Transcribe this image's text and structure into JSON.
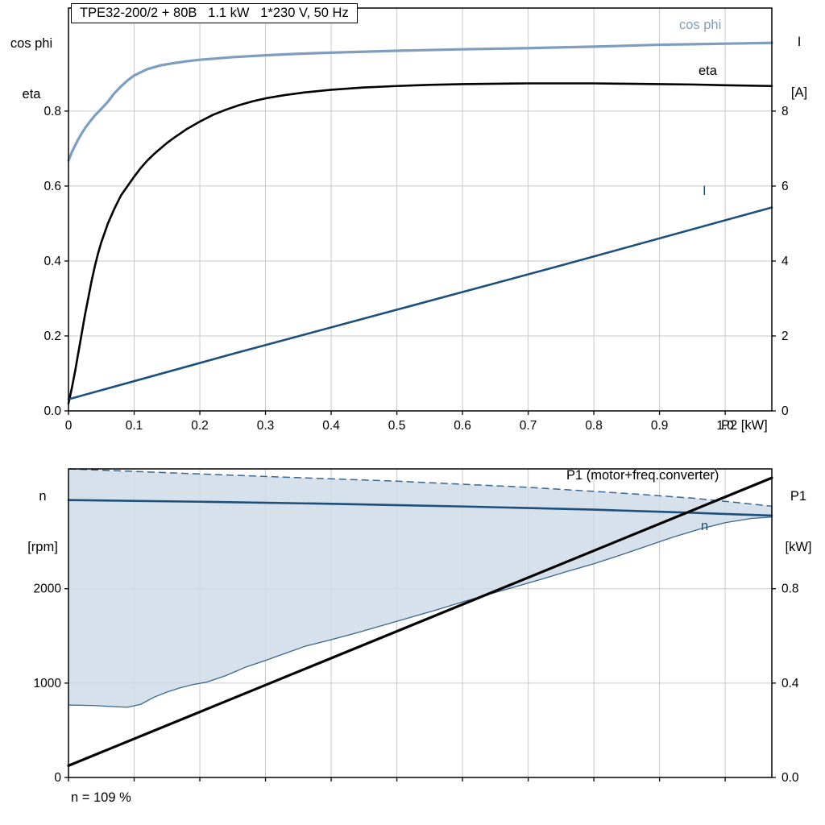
{
  "colors": {
    "cos_phi": "#7f9ebf",
    "current": "#1c4f7c",
    "eta": "#000000",
    "p1": "#000000",
    "n": "#1c4f7c",
    "envelope_fill": "#cdd9e6",
    "envelope_edge": "#39678f",
    "grid": "#c9c9c9",
    "frame": "#000000"
  },
  "chart_data": [
    {
      "type": "line",
      "title": "TPE32-200/2 + 80B   1.1 kW   1*230 V, 50 Hz",
      "x_axis": {
        "label": "P2 [kW]",
        "range": [
          0,
          1.071
        ],
        "ticks": [
          [
            0,
            "0"
          ],
          [
            0.1,
            "0.1"
          ],
          [
            0.2,
            "0.2"
          ],
          [
            0.3,
            "0.3"
          ],
          [
            0.4,
            "0.4"
          ],
          [
            0.5,
            "0.5"
          ],
          [
            0.6,
            "0.6"
          ],
          [
            0.7,
            "0.7"
          ],
          [
            0.8,
            "0.8"
          ],
          [
            0.9,
            "0.9"
          ],
          [
            1.0,
            "1.0"
          ]
        ]
      },
      "y_left": {
        "label_lines": [
          "cos phi",
          "eta"
        ],
        "range": [
          0,
          1.075
        ],
        "ticks": [
          [
            0,
            "0.0"
          ],
          [
            0.2,
            "0.2"
          ],
          [
            0.4,
            "0.4"
          ],
          [
            0.6,
            "0.6"
          ],
          [
            0.8,
            "0.8"
          ]
        ],
        "grid": [
          0.2,
          0.4,
          0.6,
          0.8
        ]
      },
      "y_right": {
        "label_lines": [
          "I",
          "[A]"
        ],
        "range": [
          0,
          10.75
        ],
        "ticks": [
          [
            0,
            "0"
          ],
          [
            2,
            "2"
          ],
          [
            4,
            "4"
          ],
          [
            6,
            "6"
          ],
          [
            8,
            "8"
          ]
        ]
      },
      "series": [
        {
          "name": "cos_phi",
          "label": "cos phi",
          "color": "#7f9ebf",
          "width": 3.2,
          "axis": "left",
          "points": [
            [
              0,
              0.668
            ],
            [
              0.005,
              0.69
            ],
            [
              0.01,
              0.708
            ],
            [
              0.015,
              0.725
            ],
            [
              0.02,
              0.74
            ],
            [
              0.025,
              0.754
            ],
            [
              0.03,
              0.766
            ],
            [
              0.04,
              0.788
            ],
            [
              0.05,
              0.806
            ],
            [
              0.06,
              0.825
            ],
            [
              0.07,
              0.848
            ],
            [
              0.08,
              0.866
            ],
            [
              0.09,
              0.882
            ],
            [
              0.1,
              0.895
            ],
            [
              0.12,
              0.912
            ],
            [
              0.14,
              0.922
            ],
            [
              0.16,
              0.928
            ],
            [
              0.18,
              0.933
            ],
            [
              0.2,
              0.937
            ],
            [
              0.25,
              0.944
            ],
            [
              0.3,
              0.949
            ],
            [
              0.35,
              0.953
            ],
            [
              0.4,
              0.956
            ],
            [
              0.5,
              0.961
            ],
            [
              0.6,
              0.965
            ],
            [
              0.7,
              0.968
            ],
            [
              0.8,
              0.972
            ],
            [
              0.9,
              0.977
            ],
            [
              1.0,
              0.98
            ],
            [
              1.071,
              0.982
            ]
          ]
        },
        {
          "name": "eta",
          "label": "eta",
          "color": "#000000",
          "width": 2.6,
          "axis": "left",
          "points": [
            [
              0,
              0.02
            ],
            [
              0.005,
              0.06
            ],
            [
              0.01,
              0.105
            ],
            [
              0.015,
              0.155
            ],
            [
              0.02,
              0.205
            ],
            [
              0.025,
              0.255
            ],
            [
              0.03,
              0.3
            ],
            [
              0.035,
              0.345
            ],
            [
              0.04,
              0.385
            ],
            [
              0.045,
              0.42
            ],
            [
              0.05,
              0.45
            ],
            [
              0.06,
              0.5
            ],
            [
              0.07,
              0.54
            ],
            [
              0.08,
              0.575
            ],
            [
              0.09,
              0.6
            ],
            [
              0.1,
              0.625
            ],
            [
              0.11,
              0.648
            ],
            [
              0.12,
              0.668
            ],
            [
              0.13,
              0.685
            ],
            [
              0.14,
              0.7
            ],
            [
              0.15,
              0.715
            ],
            [
              0.16,
              0.728
            ],
            [
              0.17,
              0.74
            ],
            [
              0.18,
              0.752
            ],
            [
              0.19,
              0.762
            ],
            [
              0.2,
              0.772
            ],
            [
              0.22,
              0.79
            ],
            [
              0.24,
              0.804
            ],
            [
              0.26,
              0.816
            ],
            [
              0.28,
              0.826
            ],
            [
              0.3,
              0.834
            ],
            [
              0.33,
              0.843
            ],
            [
              0.36,
              0.85
            ],
            [
              0.4,
              0.857
            ],
            [
              0.45,
              0.863
            ],
            [
              0.5,
              0.867
            ],
            [
              0.55,
              0.87
            ],
            [
              0.6,
              0.872
            ],
            [
              0.65,
              0.873
            ],
            [
              0.7,
              0.874
            ],
            [
              0.75,
              0.874
            ],
            [
              0.8,
              0.874
            ],
            [
              0.85,
              0.873
            ],
            [
              0.9,
              0.872
            ],
            [
              0.95,
              0.871
            ],
            [
              1.0,
              0.869
            ],
            [
              1.071,
              0.867
            ]
          ]
        },
        {
          "name": "current",
          "label": "I",
          "color": "#1c4f7c",
          "width": 2.6,
          "axis": "left",
          "points": [
            [
              0,
              0.031
            ],
            [
              0.25,
              0.152
            ],
            [
              0.5,
              0.27
            ],
            [
              0.75,
              0.388
            ],
            [
              1.071,
              0.543
            ]
          ]
        }
      ]
    },
    {
      "type": "line",
      "title": "",
      "annotation": "n = 109 %",
      "x_axis": {
        "label": "",
        "range": [
          0,
          1.071
        ],
        "ticks": [
          [
            0,
            ""
          ],
          [
            0.1,
            ""
          ],
          [
            0.2,
            ""
          ],
          [
            0.3,
            ""
          ],
          [
            0.4,
            ""
          ],
          [
            0.5,
            ""
          ],
          [
            0.6,
            ""
          ],
          [
            0.7,
            ""
          ],
          [
            0.8,
            ""
          ],
          [
            0.9,
            ""
          ],
          [
            1.0,
            ""
          ]
        ]
      },
      "y_left": {
        "label_lines": [
          "n",
          "[rpm]"
        ],
        "range": [
          0,
          3270
        ],
        "ticks": [
          [
            0,
            "0"
          ],
          [
            1000,
            "1000"
          ],
          [
            2000,
            "2000"
          ]
        ],
        "grid": [
          1000,
          2000
        ]
      },
      "y_right": {
        "label_lines": [
          "P1",
          "[kW]"
        ],
        "range": [
          0,
          1.308
        ],
        "ticks": [
          [
            0,
            "0.0"
          ],
          [
            0.4,
            "0.4"
          ],
          [
            0.8,
            "0.8"
          ]
        ]
      },
      "envelope": {
        "name": "speed-control-range",
        "upper_edge": [
          [
            0,
            3270
          ],
          [
            0.3,
            3190
          ],
          [
            0.5,
            3140
          ],
          [
            0.7,
            3075
          ],
          [
            0.85,
            3010
          ],
          [
            0.95,
            2960
          ],
          [
            1.03,
            2905
          ],
          [
            1.071,
            2875
          ]
        ],
        "lower_edge": [
          [
            0,
            768
          ],
          [
            0.04,
            762
          ],
          [
            0.07,
            750
          ],
          [
            0.09,
            744
          ],
          [
            0.11,
            775
          ],
          [
            0.13,
            850
          ],
          [
            0.15,
            905
          ],
          [
            0.17,
            950
          ],
          [
            0.19,
            985
          ],
          [
            0.21,
            1010
          ],
          [
            0.24,
            1080
          ],
          [
            0.27,
            1170
          ],
          [
            0.3,
            1240
          ],
          [
            0.33,
            1315
          ],
          [
            0.36,
            1390
          ],
          [
            0.4,
            1460
          ],
          [
            0.44,
            1535
          ],
          [
            0.48,
            1615
          ],
          [
            0.52,
            1695
          ],
          [
            0.56,
            1775
          ],
          [
            0.6,
            1860
          ],
          [
            0.64,
            1940
          ],
          [
            0.68,
            2020
          ],
          [
            0.72,
            2100
          ],
          [
            0.76,
            2185
          ],
          [
            0.8,
            2265
          ],
          [
            0.84,
            2355
          ],
          [
            0.88,
            2450
          ],
          [
            0.92,
            2545
          ],
          [
            0.96,
            2630
          ],
          [
            1.0,
            2700
          ],
          [
            1.04,
            2745
          ],
          [
            1.071,
            2760
          ],
          [
            1.071,
            2875
          ]
        ]
      },
      "series": [
        {
          "name": "n",
          "label": "n",
          "color": "#1c4f7c",
          "width": 2.6,
          "axis": "left",
          "points": [
            [
              0,
              2940
            ],
            [
              0.2,
              2922
            ],
            [
              0.4,
              2900
            ],
            [
              0.6,
              2872
            ],
            [
              0.8,
              2838
            ],
            [
              0.95,
              2805
            ],
            [
              1.071,
              2775
            ]
          ]
        },
        {
          "name": "p1",
          "label": "P1 (motor+freq.converter)",
          "color": "#000000",
          "width": 3.2,
          "axis": "right",
          "points": [
            [
              0,
              0.05
            ],
            [
              1.071,
              1.27
            ]
          ]
        }
      ]
    }
  ]
}
